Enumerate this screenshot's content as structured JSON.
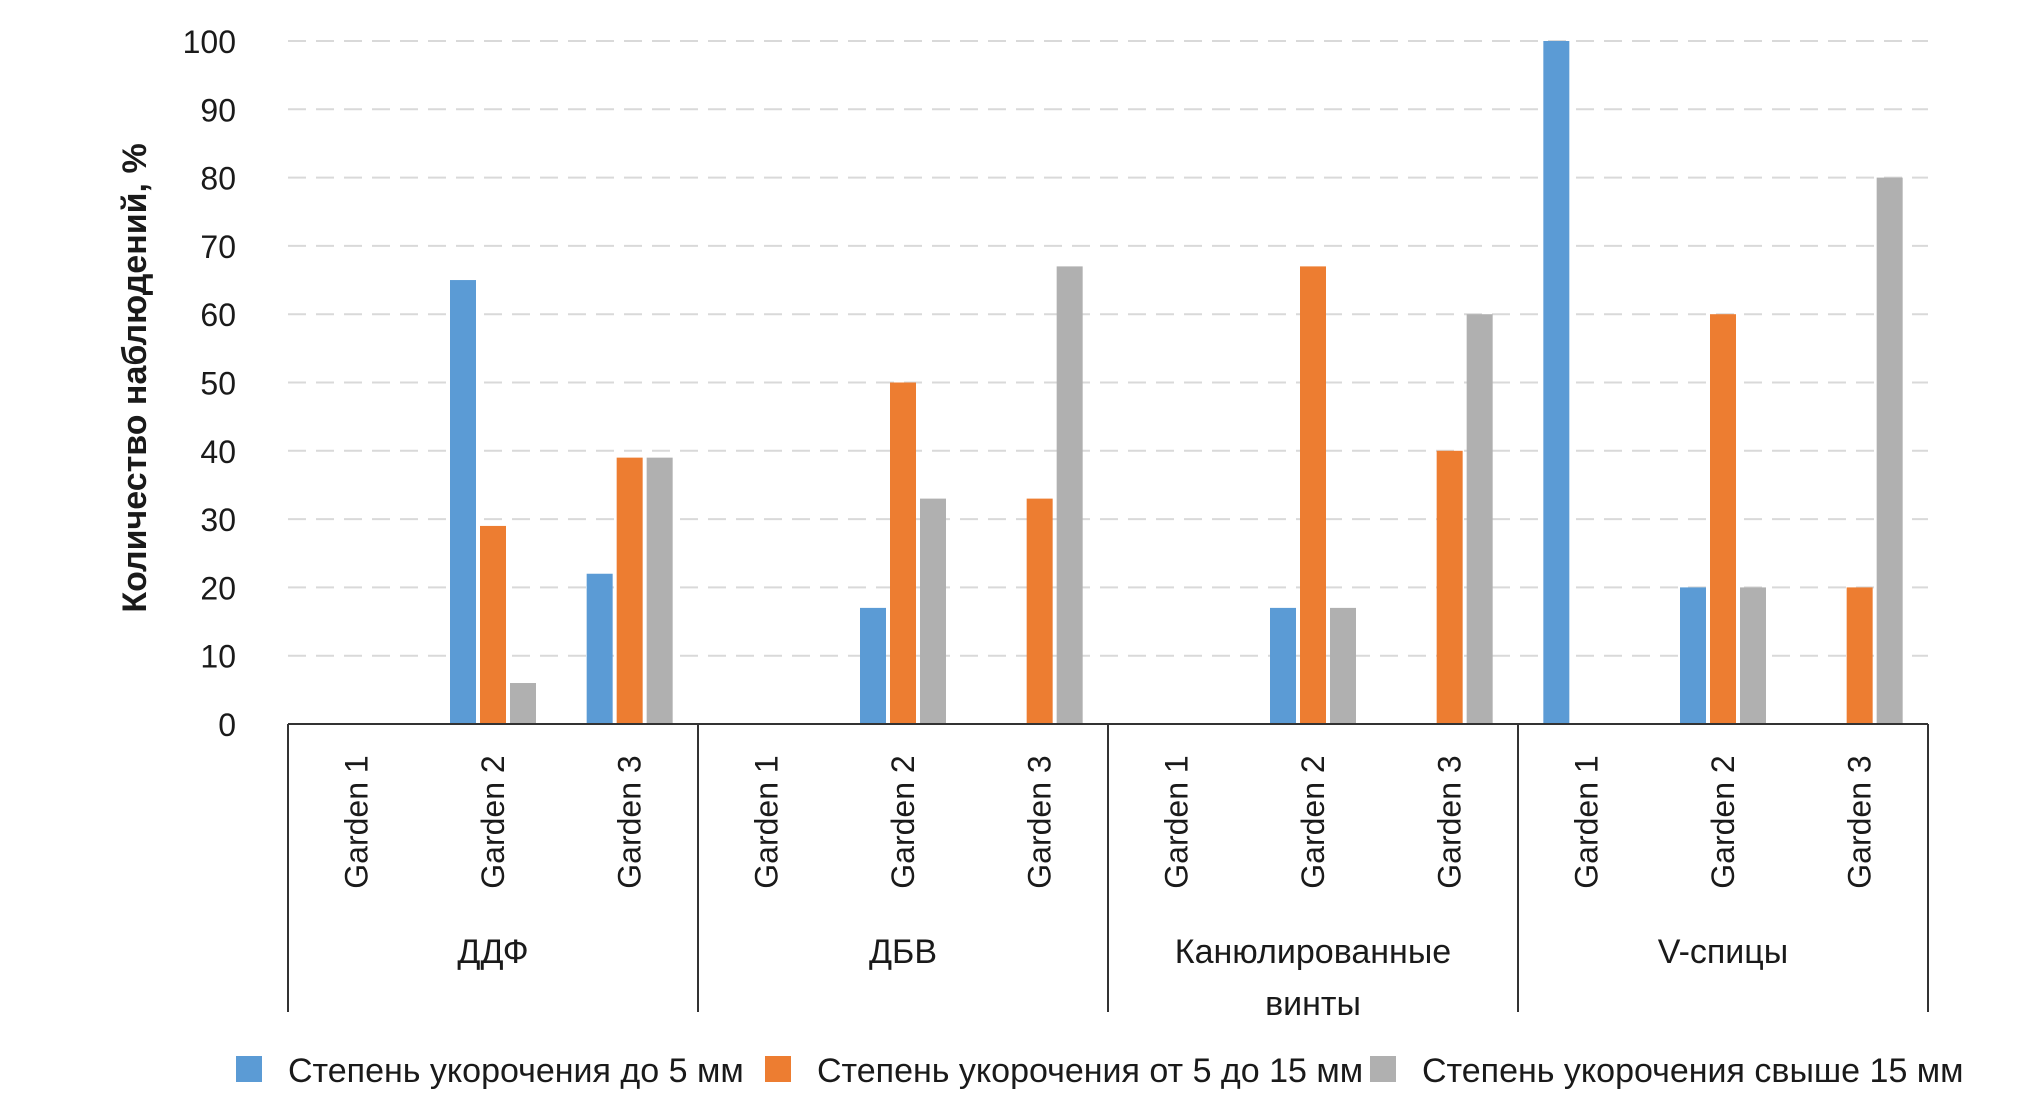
{
  "chart_data": {
    "type": "bar",
    "title": "",
    "xlabel": "",
    "ylabel": "Количество наблюдений, %",
    "ylim": [
      0,
      100
    ],
    "yticks": [
      0,
      10,
      20,
      30,
      40,
      50,
      60,
      70,
      80,
      90,
      100
    ],
    "grid": true,
    "groups": [
      {
        "name": "ДДФ",
        "categories": [
          "Garden 1",
          "Garden 2",
          "Garden 3"
        ]
      },
      {
        "name": "ДБВ",
        "categories": [
          "Garden 1",
          "Garden 2",
          "Garden 3"
        ]
      },
      {
        "name": "Канюлированные винты",
        "categories": [
          "Garden 1",
          "Garden 2",
          "Garden 3"
        ]
      },
      {
        "name": "V-спицы",
        "categories": [
          "Garden 1",
          "Garden 2",
          "Garden 3"
        ]
      }
    ],
    "series": [
      {
        "name": "Степень укорочения до 5 мм",
        "color": "#5b9bd5",
        "values": [
          0,
          65,
          22,
          0,
          17,
          0,
          0,
          17,
          0,
          100,
          20,
          0
        ]
      },
      {
        "name": "Степень укорочения от 5 до 15 мм",
        "color": "#ed7d31",
        "values": [
          0,
          29,
          39,
          0,
          50,
          33,
          0,
          67,
          40,
          0,
          60,
          20
        ]
      },
      {
        "name": "Степень укорочения свыше 15 мм",
        "color": "#b0b0b0",
        "values": [
          0,
          6,
          39,
          0,
          33,
          67,
          0,
          17,
          60,
          0,
          20,
          80
        ]
      }
    ],
    "legend_position": "bottom"
  }
}
